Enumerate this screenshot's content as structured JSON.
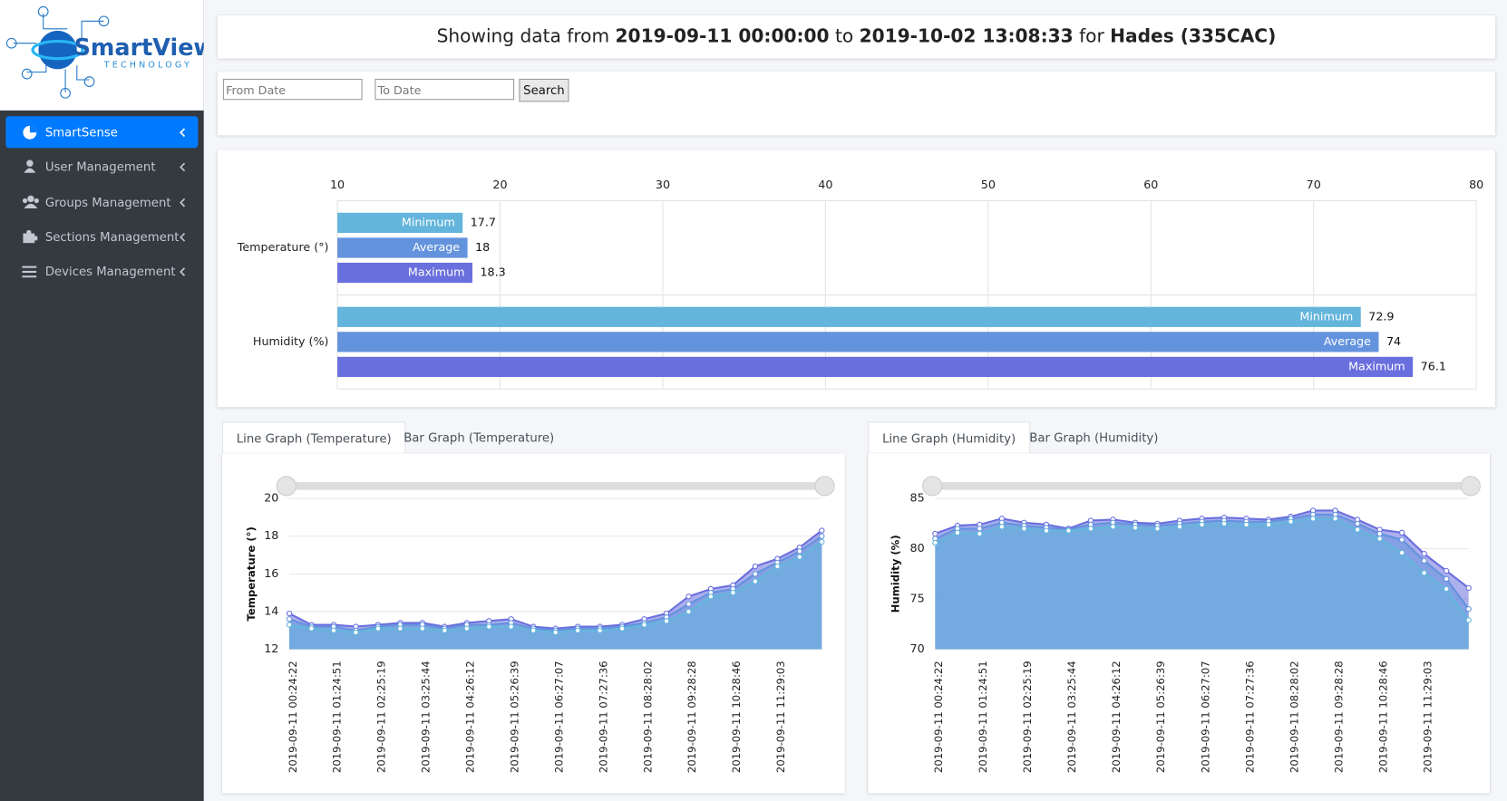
{
  "logo": {
    "name": "SmartView",
    "tagline": "TECHNOLOGY"
  },
  "sidebar": {
    "items": [
      "SmartSense",
      "User Management",
      "Groups Management",
      "Sections Management",
      "Devices Management"
    ]
  },
  "header": {
    "prefix": "Showing data from",
    "from": "2019-09-11 00:00:00",
    "middle": "to",
    "to": "2019-10-02 13:08:33",
    "for": "for",
    "device": "Hades (335CAC)"
  },
  "form": {
    "from_placeholder": "From Date",
    "to_placeholder": "To Date",
    "button": "Search"
  },
  "chart_data": [
    {
      "type": "hbar",
      "categories": [
        "Temperature (°)",
        "Humidity (%)"
      ],
      "series": [
        {
          "name": "Minimum",
          "color": "#64b5dc",
          "values": [
            17.7,
            72.9
          ]
        },
        {
          "name": "Average",
          "color": "#6493dd",
          "values": [
            18,
            74
          ]
        },
        {
          "name": "Maximum",
          "color": "#6a6fde",
          "values": [
            18.3,
            76.1
          ]
        }
      ],
      "xlim": [
        10,
        80
      ],
      "xticks": [
        10,
        20,
        30,
        40,
        50,
        60,
        70,
        80
      ],
      "grid": true
    },
    {
      "type": "area",
      "tabs": [
        "Line Graph (Temperature)",
        "Bar Graph (Temperature)"
      ],
      "ylabel": "Temperature (°)",
      "categories": [
        "2019-09-11 00:24:22",
        null,
        "2019-09-11 01:24:51",
        null,
        "2019-09-11 02:25:19",
        null,
        "2019-09-11 03:25:44",
        null,
        "2019-09-11 04:26:12",
        null,
        "2019-09-11 05:26:39",
        null,
        "2019-09-11 06:27:07",
        null,
        "2019-09-11 07:27:36",
        null,
        "2019-09-11 08:28:02",
        null,
        "2019-09-11 09:28:28",
        null,
        "2019-09-11 10:28:46",
        null,
        "2019-09-11 11:29:03",
        null,
        null
      ],
      "series": [
        {
          "color": "#6a6fde",
          "values": [
            13.9,
            13.3,
            13.3,
            13.2,
            13.3,
            13.4,
            13.4,
            13.2,
            13.4,
            13.5,
            13.6,
            13.2,
            13.1,
            13.2,
            13.2,
            13.3,
            13.6,
            13.9,
            14.8,
            15.2,
            15.4,
            16.4,
            16.8,
            17.4,
            18.3
          ]
        },
        {
          "color": "#6493dd",
          "values": [
            13.6,
            13.2,
            13.2,
            13.0,
            13.2,
            13.3,
            13.3,
            13.1,
            13.3,
            13.3,
            13.4,
            13.1,
            13.0,
            13.1,
            13.1,
            13.2,
            13.4,
            13.7,
            14.4,
            15.0,
            15.2,
            16.0,
            16.6,
            17.2,
            18.0
          ]
        },
        {
          "color": "#64b5dc",
          "values": [
            13.3,
            13.1,
            13.0,
            12.9,
            13.1,
            13.1,
            13.1,
            13.0,
            13.1,
            13.2,
            13.2,
            13.0,
            12.9,
            13.0,
            13.0,
            13.1,
            13.3,
            13.5,
            14.0,
            14.8,
            15.0,
            15.6,
            16.4,
            16.9,
            17.7
          ]
        }
      ],
      "ylim": [
        12,
        20
      ],
      "yticks": [
        12,
        14,
        16,
        18,
        20
      ],
      "grid": true
    },
    {
      "type": "area",
      "tabs": [
        "Line Graph (Humidity)",
        "Bar Graph (Humidity)"
      ],
      "ylabel": "Humidity (%)",
      "categories": [
        "2019-09-11 00:24:22",
        null,
        "2019-09-11 01:24:51",
        null,
        "2019-09-11 02:25:19",
        null,
        "2019-09-11 03:25:44",
        null,
        "2019-09-11 04:26:12",
        null,
        "2019-09-11 05:26:39",
        null,
        "2019-09-11 06:27:07",
        null,
        "2019-09-11 07:27:36",
        null,
        "2019-09-11 08:28:02",
        null,
        "2019-09-11 09:28:28",
        null,
        "2019-09-11 10:28:46",
        null,
        "2019-09-11 11:29:03",
        null,
        null
      ],
      "series": [
        {
          "color": "#6a6fde",
          "values": [
            81.5,
            82.3,
            82.4,
            83.0,
            82.6,
            82.4,
            82.0,
            82.8,
            82.9,
            82.6,
            82.5,
            82.8,
            83.0,
            83.1,
            83.0,
            82.9,
            83.2,
            83.8,
            83.8,
            82.9,
            81.9,
            81.6,
            79.5,
            77.8,
            76.1
          ]
        },
        {
          "color": "#6493dd",
          "values": [
            81.0,
            82.0,
            82.0,
            82.6,
            82.3,
            82.1,
            81.9,
            82.4,
            82.6,
            82.4,
            82.3,
            82.5,
            82.7,
            82.8,
            82.7,
            82.7,
            83.0,
            83.4,
            83.4,
            82.5,
            81.5,
            80.9,
            78.8,
            77.0,
            74.0
          ]
        },
        {
          "color": "#64b5dc",
          "values": [
            80.6,
            81.6,
            81.5,
            82.2,
            82.0,
            81.8,
            81.8,
            82.0,
            82.2,
            82.1,
            82.0,
            82.2,
            82.4,
            82.5,
            82.4,
            82.4,
            82.7,
            83.0,
            83.0,
            81.9,
            81.0,
            79.6,
            77.6,
            76.0,
            72.9
          ]
        }
      ],
      "ylim": [
        70,
        85
      ],
      "yticks": [
        70,
        75,
        80,
        85
      ],
      "grid": true
    }
  ]
}
